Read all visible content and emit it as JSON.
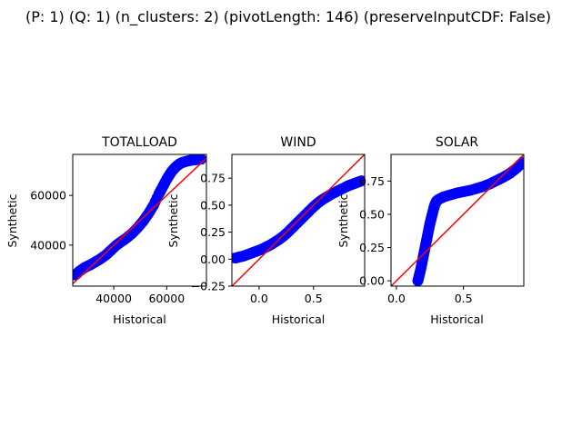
{
  "figure": {
    "suptitle": "(P: 1) (Q: 1) (n_clusters: 2) (pivotLength: 146) (preserveInputCDF: False)"
  },
  "chart_data": [
    {
      "type": "scatter",
      "title": "TOTALLOAD",
      "xlabel": "Historical",
      "ylabel": "Synthetic",
      "xlim": [
        24500,
        75000
      ],
      "ylim": [
        23500,
        76500
      ],
      "xticks": [
        40000,
        60000
      ],
      "yticks": [
        40000,
        60000
      ],
      "x_tick_labels": [
        "40000",
        "60000"
      ],
      "y_tick_labels": [
        "40000",
        "60000"
      ],
      "marker_color": "#0000ff",
      "reference_line_color": "#ff0000",
      "reference_line": "y = x",
      "grid": false,
      "x": [
        25500,
        27000,
        29000,
        31000,
        33000,
        35000,
        37000,
        39000,
        41000,
        43000,
        45000,
        47000,
        49000,
        51000,
        53000,
        55000,
        57000,
        58000,
        59000,
        60000,
        61000,
        62000,
        63000,
        64000,
        65000,
        66000,
        67000,
        68000,
        69000,
        70000,
        71000,
        72000,
        73000
      ],
      "y": [
        28000,
        29500,
        31000,
        32000,
        33200,
        34500,
        36000,
        38000,
        40000,
        41500,
        43000,
        44800,
        47000,
        49500,
        52500,
        56000,
        60500,
        62500,
        64500,
        66500,
        68200,
        69800,
        71000,
        72000,
        72800,
        73300,
        73600,
        73900,
        74100,
        74300,
        74400,
        74500,
        74600
      ]
    },
    {
      "type": "scatter",
      "title": "WIND",
      "xlabel": "Historical",
      "ylabel": "Synthetic",
      "xlim": [
        -0.25,
        0.97
      ],
      "ylim": [
        -0.25,
        0.97
      ],
      "xticks": [
        0.0,
        0.5
      ],
      "yticks": [
        -0.25,
        0.0,
        0.25,
        0.5,
        0.75
      ],
      "x_tick_labels": [
        "0.0",
        "0.5"
      ],
      "y_tick_labels": [
        "−0.25",
        "0.00",
        "0.25",
        "0.50",
        "0.75"
      ],
      "marker_color": "#0000ff",
      "reference_line_color": "#ff0000",
      "reference_line": "y = x",
      "grid": false,
      "x": [
        -0.22,
        -0.18,
        -0.14,
        -0.1,
        -0.06,
        -0.02,
        0.02,
        0.06,
        0.1,
        0.14,
        0.18,
        0.22,
        0.26,
        0.3,
        0.34,
        0.38,
        0.42,
        0.46,
        0.5,
        0.54,
        0.58,
        0.62,
        0.66,
        0.7,
        0.74,
        0.78,
        0.82,
        0.86,
        0.9,
        0.94
      ],
      "y": [
        0.01,
        0.02,
        0.03,
        0.045,
        0.06,
        0.075,
        0.09,
        0.11,
        0.13,
        0.155,
        0.18,
        0.21,
        0.245,
        0.285,
        0.325,
        0.365,
        0.405,
        0.445,
        0.485,
        0.52,
        0.55,
        0.575,
        0.6,
        0.62,
        0.64,
        0.66,
        0.68,
        0.695,
        0.71,
        0.725
      ]
    },
    {
      "type": "scatter",
      "title": "SOLAR",
      "xlabel": "Historical",
      "ylabel": "Synthetic",
      "xlim": [
        -0.04,
        0.95
      ],
      "ylim": [
        -0.04,
        0.95
      ],
      "xticks": [
        0.0,
        0.5
      ],
      "yticks": [
        0.0,
        0.25,
        0.5,
        0.75
      ],
      "x_tick_labels": [
        "0.0",
        "0.5"
      ],
      "y_tick_labels": [
        "0.00",
        "0.25",
        "0.50",
        "0.75"
      ],
      "marker_color": "#0000ff",
      "reference_line_color": "#ff0000",
      "reference_line": "y = x",
      "grid": false,
      "x": [
        0.16,
        0.17,
        0.18,
        0.19,
        0.2,
        0.21,
        0.22,
        0.23,
        0.24,
        0.25,
        0.26,
        0.27,
        0.28,
        0.29,
        0.3,
        0.32,
        0.35,
        0.4,
        0.45,
        0.5,
        0.55,
        0.6,
        0.65,
        0.7,
        0.75,
        0.8,
        0.85,
        0.9,
        0.94
      ],
      "y": [
        0.0,
        0.04,
        0.08,
        0.13,
        0.18,
        0.23,
        0.28,
        0.33,
        0.38,
        0.43,
        0.47,
        0.51,
        0.55,
        0.58,
        0.6,
        0.615,
        0.63,
        0.645,
        0.66,
        0.67,
        0.68,
        0.695,
        0.71,
        0.73,
        0.755,
        0.78,
        0.81,
        0.85,
        0.89
      ]
    }
  ]
}
